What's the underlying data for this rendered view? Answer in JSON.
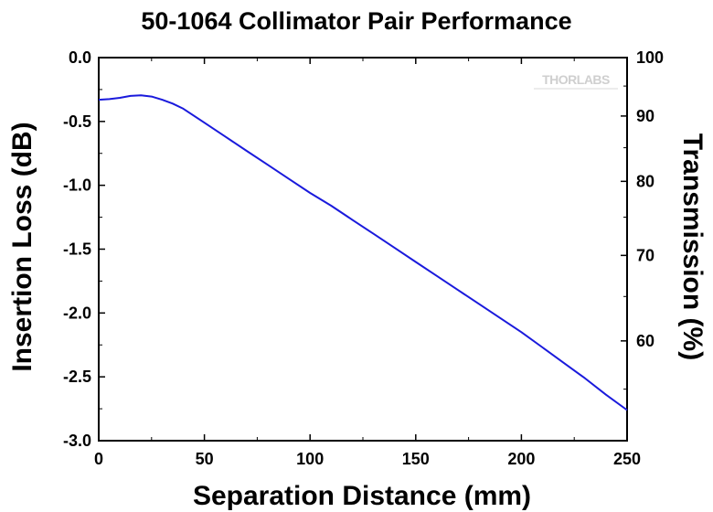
{
  "chart_data": {
    "type": "line",
    "title": "50-1064 Collimator Pair Performance",
    "xlabel": "Separation Distance (mm)",
    "ylabel": "Insertion Loss (dB)",
    "y2label": "Transmission (%)",
    "xlim": [
      0,
      250
    ],
    "ylim": [
      -3.0,
      0.0
    ],
    "x_ticks": [
      0,
      50,
      100,
      150,
      200,
      250
    ],
    "x_tick_labels": [
      "0",
      "50",
      "100",
      "150",
      "200",
      "250"
    ],
    "y_ticks": [
      0.0,
      -0.5,
      -1.0,
      -1.5,
      -2.0,
      -2.5,
      -3.0
    ],
    "y_tick_labels": [
      "0.0",
      "-0.5",
      "-1.0",
      "-1.5",
      "-2.0",
      "-2.5",
      "-3.0"
    ],
    "y2_ticks": [
      100,
      90,
      80,
      70,
      60
    ],
    "y2_tick_labels": [
      "100",
      "90",
      "80",
      "70",
      "60"
    ],
    "grid": false,
    "legend": "none",
    "watermark": "THORLABS",
    "series": [
      {
        "color": "#1a1adc",
        "x": [
          0,
          5,
          10,
          15,
          20,
          25,
          30,
          35,
          40,
          50,
          60,
          70,
          80,
          90,
          100,
          110,
          120,
          130,
          140,
          150,
          160,
          170,
          180,
          190,
          200,
          210,
          220,
          230,
          240,
          250
        ],
        "y": [
          -0.33,
          -0.325,
          -0.315,
          -0.3,
          -0.295,
          -0.305,
          -0.33,
          -0.36,
          -0.4,
          -0.51,
          -0.62,
          -0.73,
          -0.84,
          -0.95,
          -1.06,
          -1.16,
          -1.27,
          -1.38,
          -1.49,
          -1.6,
          -1.71,
          -1.82,
          -1.93,
          -2.04,
          -2.15,
          -2.27,
          -2.39,
          -2.51,
          -2.64,
          -2.76
        ]
      }
    ]
  }
}
